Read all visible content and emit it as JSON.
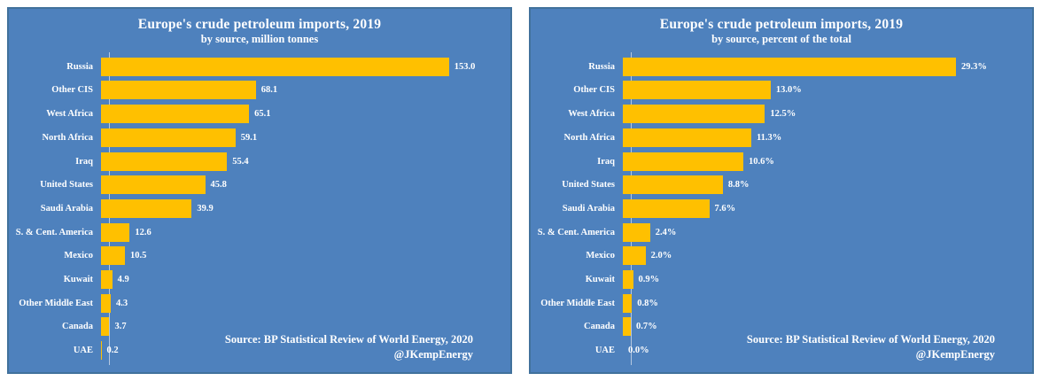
{
  "colors": {
    "panel_background": "#4E81BD",
    "panel_border": "#41719C",
    "bar": "#FFC000",
    "text": "#FFFFFF",
    "axis_line": "#C9D5E6"
  },
  "source": {
    "line1": "Source: BP Statistical Review of World Energy, 2020",
    "line2": "@JKempEnergy"
  },
  "chart_data": [
    {
      "type": "bar",
      "orientation": "horizontal",
      "title": "Europe's crude petroleum imports, 2019",
      "subtitle": "by source, million tonnes",
      "categories": [
        "Russia",
        "Other CIS",
        "West Africa",
        "North Africa",
        "Iraq",
        "United States",
        "Saudi Arabia",
        "S. & Cent. America",
        "Mexico",
        "Kuwait",
        "Other Middle East",
        "Canada",
        "UAE"
      ],
      "values": [
        153.0,
        68.1,
        65.1,
        59.1,
        55.4,
        45.8,
        39.9,
        12.6,
        10.5,
        4.9,
        4.3,
        3.7,
        0.2
      ],
      "value_labels": [
        "153.0",
        "68.1",
        "65.1",
        "59.1",
        "55.4",
        "45.8",
        "39.9",
        "12.6",
        "10.5",
        "4.9",
        "4.3",
        "3.7",
        "0.2"
      ],
      "xlim": [
        0,
        180
      ],
      "bar_color": "#FFC000",
      "grid": false,
      "legend": "none"
    },
    {
      "type": "bar",
      "orientation": "horizontal",
      "title": "Europe's crude petroleum imports, 2019",
      "subtitle": "by source, percent of the total",
      "categories": [
        "Russia",
        "Other CIS",
        "West Africa",
        "North Africa",
        "Iraq",
        "United States",
        "Saudi Arabia",
        "S. & Cent. America",
        "Mexico",
        "Kuwait",
        "Other Middle East",
        "Canada",
        "UAE"
      ],
      "values": [
        29.3,
        13.0,
        12.5,
        11.3,
        10.6,
        8.8,
        7.6,
        2.4,
        2.0,
        0.9,
        0.8,
        0.7,
        0.0
      ],
      "value_labels": [
        "29.3%",
        "13.0%",
        "12.5%",
        "11.3%",
        "10.6%",
        "8.8%",
        "7.6%",
        "2.4%",
        "2.0%",
        "0.9%",
        "0.8%",
        "0.7%",
        "0.0%"
      ],
      "xlim": [
        0,
        36
      ],
      "bar_color": "#FFC000",
      "grid": false,
      "legend": "none"
    }
  ]
}
